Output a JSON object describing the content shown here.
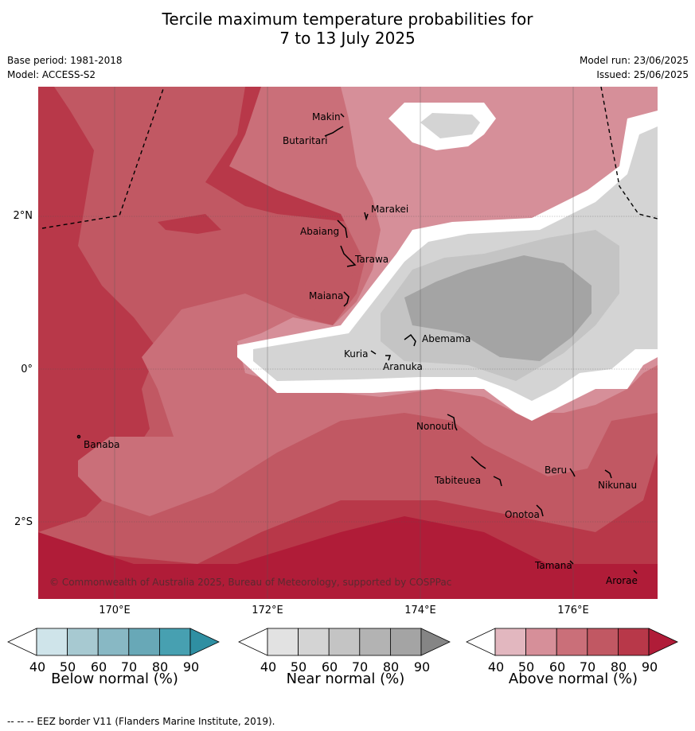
{
  "title_line1": "Tercile maximum temperature probabilities for",
  "title_line2": "7 to 13 July 2025",
  "base_period": "Base period: 1981-2018",
  "model": "Model: ACCESS-S2",
  "model_run": "Model run: 23/06/2025",
  "issued": "Issued: 25/06/2025",
  "lat_labels": [
    "2°N",
    "0°",
    "2°S"
  ],
  "lon_labels": [
    "170°E",
    "172°E",
    "174°E",
    "176°E"
  ],
  "places": {
    "makin": "Makin",
    "butaritari": "Butaritari",
    "marakei": "Marakei",
    "abaiang": "Abaiang",
    "tarawa": "Tarawa",
    "maiana": "Maiana",
    "abemama": "Abemama",
    "kuria": "Kuria",
    "aranuka": "Aranuka",
    "nonouti": "Nonouti",
    "banaba": "Banaba",
    "beru": "Beru",
    "nikunau": "Nikunau",
    "tabiteuea": "Tabiteuea",
    "onotoa": "Onotoa",
    "tamana": "Tamana",
    "arorae": "Arorae"
  },
  "copyright": "© Commonwealth of Australia 2025, Bureau of Meteorology, supported by COSPPac",
  "colorbars": [
    {
      "label": "Below normal (%)",
      "ticks": [
        "40",
        "50",
        "60",
        "70",
        "80",
        "90"
      ],
      "colors": [
        "#ffffff",
        "#cfe4ea",
        "#a7c9d1",
        "#88b8c4",
        "#68a8b7",
        "#47a0b1",
        "#2f8fa2"
      ]
    },
    {
      "label": "Near normal (%)",
      "ticks": [
        "40",
        "50",
        "60",
        "70",
        "80",
        "90"
      ],
      "colors": [
        "#ffffff",
        "#e2e2e2",
        "#d4d4d4",
        "#c4c4c4",
        "#b3b3b3",
        "#a4a4a4",
        "#858585"
      ]
    },
    {
      "label": "Above normal (%)",
      "ticks": [
        "40",
        "50",
        "60",
        "70",
        "80",
        "90"
      ],
      "colors": [
        "#ffffff",
        "#e2b7bf",
        "#d68f99",
        "#ca6f79",
        "#c15863",
        "#b83849",
        "#b01c38"
      ]
    }
  ],
  "footer": "--  --  -- EEZ border V11 (Flanders Marine Institute, 2019)."
}
